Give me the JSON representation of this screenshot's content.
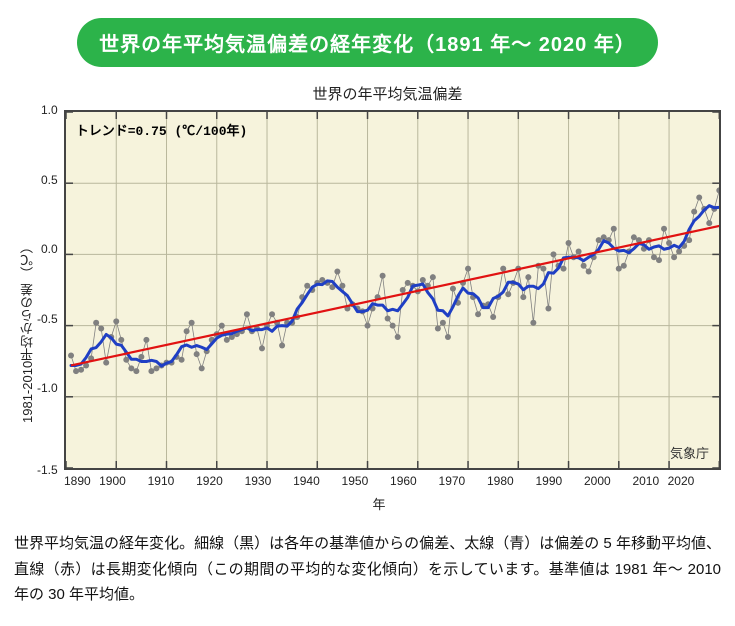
{
  "banner": "世界の年平均気温偏差の経年変化（1891 年～ 2020 年）",
  "chart": {
    "type": "line",
    "title": "世界の年平均気温偏差",
    "trend_label": "トレンド=0.75 (℃/100年)",
    "source_label": "気象庁",
    "xlabel": "年",
    "ylabel": "1981-2010平均からの差 （℃）",
    "xlim": [
      1890,
      2020
    ],
    "ylim": [
      -1.5,
      1.0
    ],
    "xticks": [
      1890,
      1900,
      1910,
      1920,
      1930,
      1940,
      1950,
      1960,
      1970,
      1980,
      1990,
      2000,
      2010,
      2020
    ],
    "yticks": [
      1.0,
      0.5,
      0.0,
      -0.5,
      -1.0,
      -1.5
    ],
    "background_color": "#f6f3dc",
    "grid_color": "#b9b79c",
    "frame_color": "#444444",
    "annual": {
      "line_color": "#808080",
      "line_width": 0.8,
      "marker_color": "#808080",
      "marker_radius": 3.0,
      "years_start": 1891,
      "values": [
        -0.71,
        -0.82,
        -0.81,
        -0.78,
        -0.73,
        -0.48,
        -0.52,
        -0.76,
        -0.58,
        -0.47,
        -0.6,
        -0.74,
        -0.8,
        -0.82,
        -0.72,
        -0.6,
        -0.82,
        -0.8,
        -0.78,
        -0.76,
        -0.76,
        -0.72,
        -0.74,
        -0.54,
        -0.48,
        -0.7,
        -0.8,
        -0.68,
        -0.6,
        -0.56,
        -0.5,
        -0.6,
        -0.58,
        -0.56,
        -0.54,
        -0.42,
        -0.54,
        -0.52,
        -0.66,
        -0.5,
        -0.42,
        -0.48,
        -0.64,
        -0.48,
        -0.48,
        -0.44,
        -0.3,
        -0.22,
        -0.25,
        -0.2,
        -0.18,
        -0.2,
        -0.23,
        -0.12,
        -0.22,
        -0.38,
        -0.35,
        -0.38,
        -0.4,
        -0.5,
        -0.38,
        -0.3,
        -0.15,
        -0.45,
        -0.5,
        -0.58,
        -0.25,
        -0.2,
        -0.22,
        -0.26,
        -0.18,
        -0.22,
        -0.16,
        -0.52,
        -0.48,
        -0.58,
        -0.24,
        -0.34,
        -0.2,
        -0.1,
        -0.3,
        -0.42,
        -0.36,
        -0.35,
        -0.44,
        -0.3,
        -0.1,
        -0.28,
        -0.2,
        -0.1,
        -0.3,
        -0.16,
        -0.48,
        -0.08,
        -0.1,
        -0.38,
        0.0,
        -0.08,
        -0.1,
        0.08,
        -0.02,
        0.02,
        -0.08,
        -0.12,
        -0.02,
        0.1,
        0.12,
        0.1,
        0.18,
        -0.1,
        -0.08,
        0.02,
        0.12,
        0.1,
        0.04,
        0.1,
        -0.02,
        -0.04,
        0.18,
        0.08,
        -0.02,
        0.02,
        0.06,
        0.1,
        0.3,
        0.4,
        0.32,
        0.22,
        0.32,
        0.45
      ]
    },
    "smoothed": {
      "line_color": "#1f3fc4",
      "line_width": 3.0
    },
    "trend": {
      "line_color": "#e11212",
      "line_width": 2.2,
      "y_start": -0.78,
      "y_end": 0.2
    }
  },
  "caption": "世界平均気温の経年変化。細線（黒）は各年の基準値からの偏差、太線（青）は偏差の 5 年移動平均値、直線（赤）は長期変化傾向（この期間の平均的な変化傾向）を示しています。基準値は 1981 年～ 2010 年の 30 年平均値。"
}
